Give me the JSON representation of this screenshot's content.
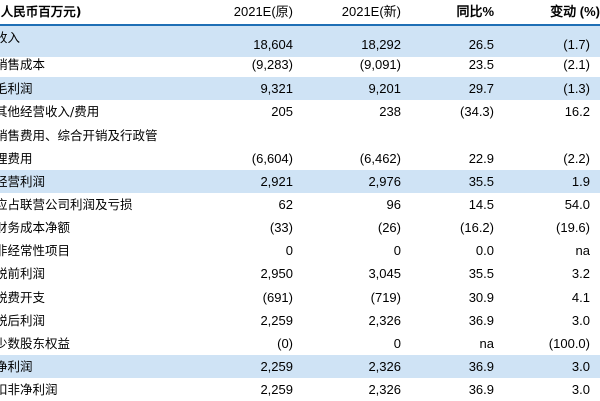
{
  "header": {
    "label": "(人民币百万元)",
    "col1": "2021E(原)",
    "col2": "2021E(新)",
    "col3": "同比%",
    "col4": "变动 (%)"
  },
  "rows": [
    {
      "label": "收入",
      "v1": "18,604",
      "v2": "18,292",
      "v3": "26.5",
      "v4": "(1.7)"
    },
    {
      "label": "销售成本",
      "v1": "(9,283)",
      "v2": "(9,091)",
      "v3": "23.5",
      "v4": "(2.1)"
    },
    {
      "label": "毛利润",
      "v1": "9,321",
      "v2": "9,201",
      "v3": "29.7",
      "v4": "(1.3)"
    },
    {
      "label": "其他经营收入/费用",
      "v1": "205",
      "v2": "238",
      "v3": "(34.3)",
      "v4": "16.2"
    },
    {
      "label": "销售费用、综合开销及行政管",
      "v1": "",
      "v2": "",
      "v3": "",
      "v4": ""
    },
    {
      "label": "理费用",
      "v1": "(6,604)",
      "v2": "(6,462)",
      "v3": "22.9",
      "v4": "(2.2)"
    },
    {
      "label": "经营利润",
      "v1": "2,921",
      "v2": "2,976",
      "v3": "35.5",
      "v4": "1.9"
    },
    {
      "label": "应占联营公司利润及亏损",
      "v1": "62",
      "v2": "96",
      "v3": "14.5",
      "v4": "54.0"
    },
    {
      "label": "财务成本净额",
      "v1": "(33)",
      "v2": "(26)",
      "v3": "(16.2)",
      "v4": "(19.6)"
    },
    {
      "label": "非经常性项目",
      "v1": "0",
      "v2": "0",
      "v3": "0.0",
      "v4": "na"
    },
    {
      "label": "税前利润",
      "v1": "2,950",
      "v2": "3,045",
      "v3": "35.5",
      "v4": "3.2"
    },
    {
      "label": "税费开支",
      "v1": "(691)",
      "v2": "(719)",
      "v3": "30.9",
      "v4": "4.1"
    },
    {
      "label": "税后利润",
      "v1": "2,259",
      "v2": "2,326",
      "v3": "36.9",
      "v4": "3.0"
    },
    {
      "label": "少数股东权益",
      "v1": "(0)",
      "v2": "0",
      "v3": "na",
      "v4": "(100.0)"
    },
    {
      "label": "净利润",
      "v1": "2,259",
      "v2": "2,326",
      "v3": "36.9",
      "v4": "3.0"
    },
    {
      "label": "扣非净利润",
      "v1": "2,259",
      "v2": "2,326",
      "v3": "36.9",
      "v4": "3.0"
    }
  ],
  "colors": {
    "highlight": "#cfe3f5",
    "header_rule": "#1f6fb5"
  }
}
